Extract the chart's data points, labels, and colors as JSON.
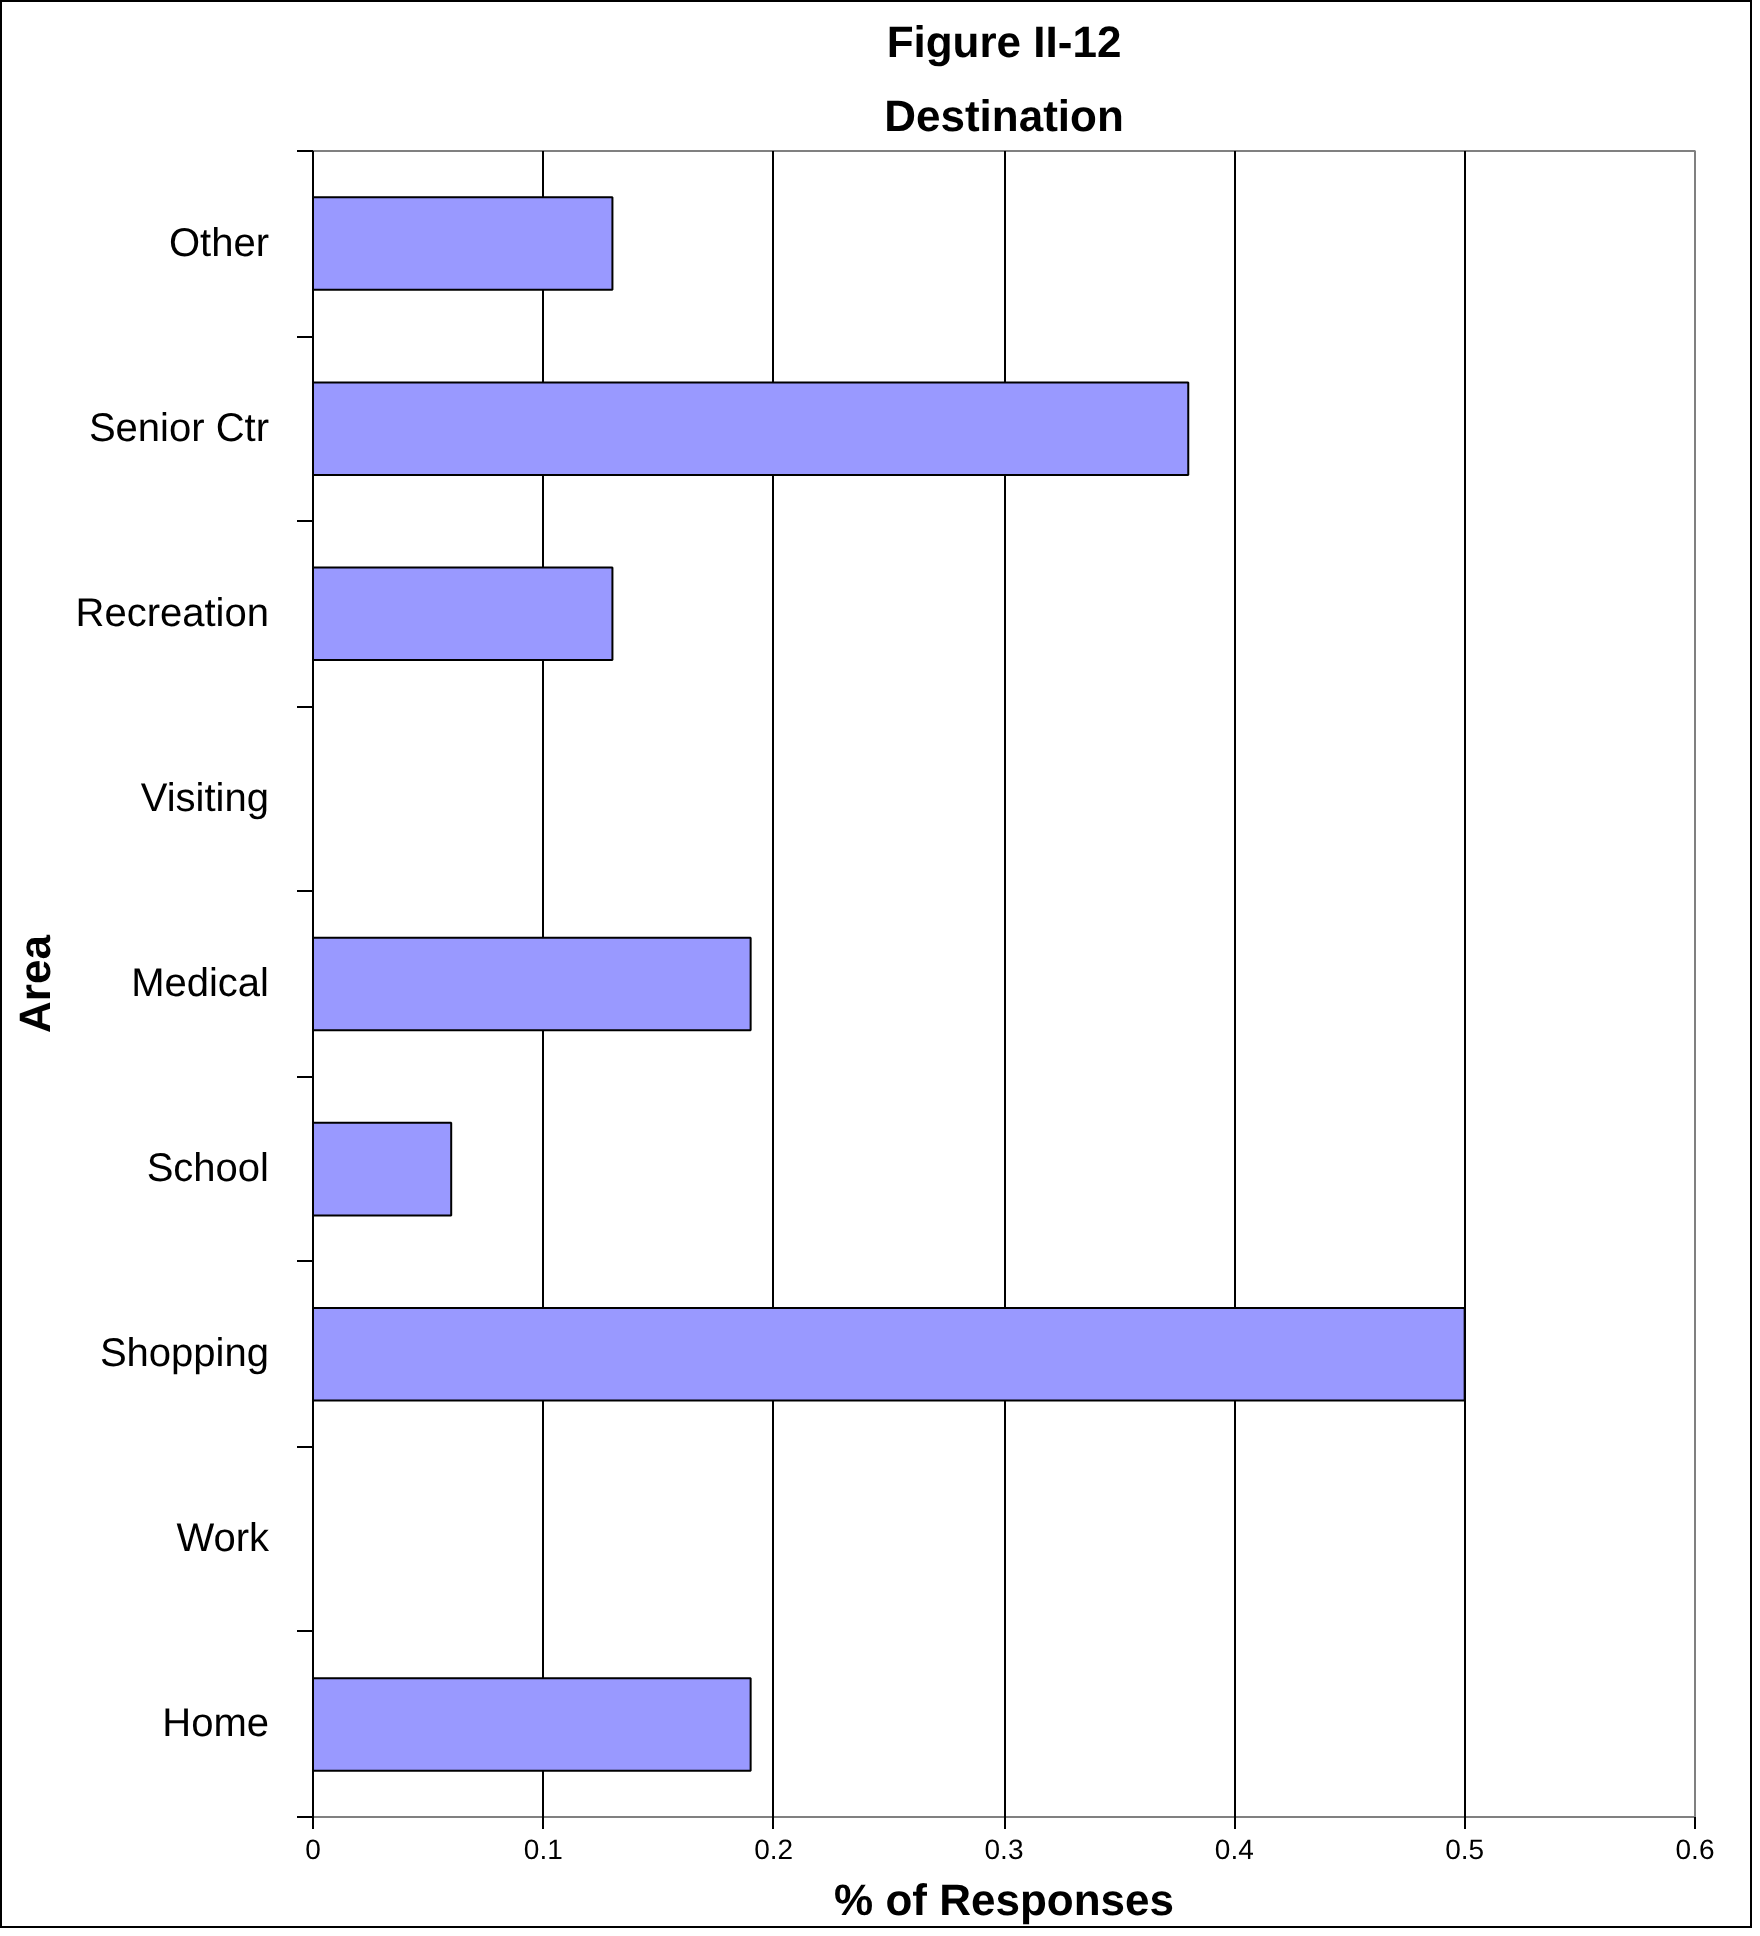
{
  "chart_data": {
    "type": "bar",
    "orientation": "horizontal",
    "title": "Figure II-12",
    "subtitle": "Destination",
    "xlabel": "% of Responses",
    "ylabel": "Area",
    "categories": [
      "Other",
      "Senior Ctr",
      "Recreation",
      "Visiting",
      "Medical",
      "School",
      "Shopping",
      "Work",
      "Home"
    ],
    "values": [
      0.13,
      0.38,
      0.13,
      null,
      0.19,
      0.06,
      0.5,
      null,
      0.19
    ],
    "color": "#9999ff",
    "xlim": [
      0,
      0.6
    ],
    "xticks": [
      0,
      0.1,
      0.2,
      0.3,
      0.4,
      0.5,
      0.6
    ],
    "grid": "x"
  }
}
